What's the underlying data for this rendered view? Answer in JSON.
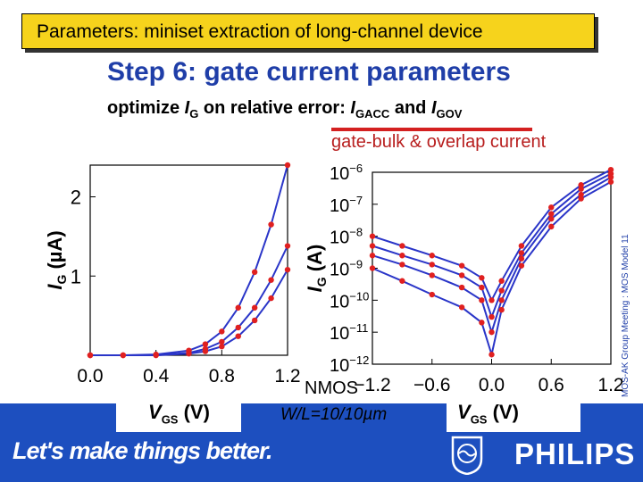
{
  "slide": {
    "header": "Parameters: miniset extraction of long-channel device",
    "step_title": "Step 6: gate current parameters",
    "subtitle_parts": [
      "optimize ",
      "I",
      "G",
      " on relative error: ",
      "I",
      "GACC",
      " and ",
      "I",
      "GOV"
    ],
    "annotation": "gate-bulk & overlap current",
    "device_type": "NMOS",
    "device_geom": "W/L=10/10µm",
    "side_note": "MOS-AK Group Meeting : MOS Model 11",
    "slogan": "Let's make things better.",
    "brand": "PHILIPS",
    "logo_icon": "philips-shield-icon"
  },
  "colors": {
    "title_bg": "#f6d31c",
    "accent_blue": "#1f3ea8",
    "band_blue": "#1d4fbf",
    "model_line": "#2a35c8",
    "measured_marker": "#e02020"
  },
  "chart_data": [
    {
      "type": "line",
      "scale": "linear",
      "xlabel_parts": [
        "V",
        "GS",
        "  (V)"
      ],
      "ylabel_parts": [
        "I",
        "G",
        "  (µA)"
      ],
      "xlim": [
        0.0,
        1.2
      ],
      "ylim": [
        0,
        2.4
      ],
      "xticks": [
        "0.0",
        "0.4",
        "0.8",
        "1.2"
      ],
      "yticks": [
        "1",
        "2"
      ],
      "x": [
        0.0,
        0.2,
        0.4,
        0.6,
        0.7,
        0.8,
        0.9,
        1.0,
        1.1,
        1.2
      ],
      "series": [
        {
          "values": [
            0.0,
            0.0,
            0.01,
            0.06,
            0.14,
            0.3,
            0.6,
            1.05,
            1.65,
            2.4
          ]
        },
        {
          "values": [
            0.0,
            0.0,
            0.0,
            0.03,
            0.08,
            0.17,
            0.35,
            0.6,
            0.95,
            1.38
          ]
        },
        {
          "values": [
            0.0,
            0.0,
            0.0,
            0.02,
            0.05,
            0.11,
            0.24,
            0.44,
            0.72,
            1.08
          ]
        }
      ]
    },
    {
      "type": "line",
      "scale": "log",
      "xlabel_parts": [
        "V",
        "GS",
        "  (V)"
      ],
      "ylabel_parts": [
        "I",
        "G",
        "  (A)"
      ],
      "xlim": [
        -1.2,
        1.2
      ],
      "ylim": [
        1e-12,
        1e-06
      ],
      "xticks": [
        "−1.2",
        "−0.6",
        "0.0",
        "0.6",
        "1.2"
      ],
      "yticks": [
        "10−12",
        "10−11",
        "10−10",
        "10−9",
        "10−8",
        "10−7",
        "10−6"
      ],
      "x": [
        -1.2,
        -0.9,
        -0.6,
        -0.3,
        -0.1,
        0.0,
        0.1,
        0.3,
        0.6,
        0.9,
        1.2
      ],
      "series": [
        {
          "values": [
            1e-08,
            5e-09,
            2.5e-09,
            1.2e-09,
            5e-10,
            1e-10,
            4e-10,
            5e-09,
            8e-08,
            4e-07,
            1.2e-06
          ]
        },
        {
          "values": [
            5e-09,
            2.5e-09,
            1.3e-09,
            6e-10,
            2.5e-10,
            3e-11,
            2e-10,
            3e-09,
            5e-08,
            3e-07,
            9e-07
          ]
        },
        {
          "values": [
            2.5e-09,
            1.3e-09,
            6e-10,
            2.5e-10,
            1e-10,
            1e-11,
            1e-10,
            2e-09,
            3.5e-08,
            2e-07,
            7e-07
          ]
        },
        {
          "values": [
            1e-09,
            4e-10,
            1.5e-10,
            6e-11,
            2e-11,
            2e-12,
            5e-11,
            1.2e-09,
            2e-08,
            1.5e-07,
            5e-07
          ]
        }
      ]
    }
  ]
}
